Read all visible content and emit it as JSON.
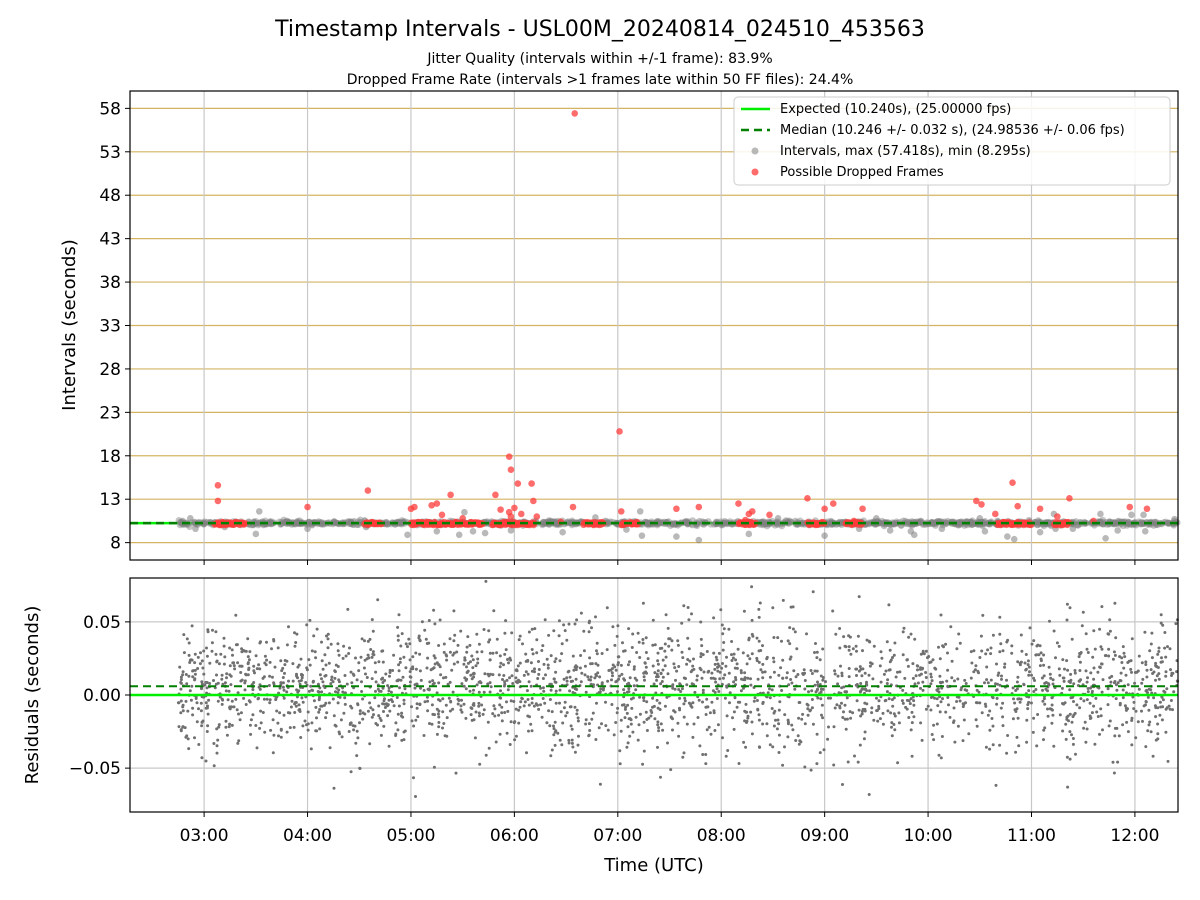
{
  "chart_data": [
    {
      "type": "scatter",
      "title": "Timestamp Intervals - USL00M_20240814_024510_453563",
      "subtitle_lines": [
        "Jitter Quality (intervals within +/-1 frame): 83.9%",
        "Dropped Frame Rate (intervals >1 frames late within 50 FF files): 24.4%"
      ],
      "xlabel": "",
      "ylabel": "Intervals (seconds)",
      "xlim": [
        "02:17",
        "12:25"
      ],
      "ylim": [
        6,
        60
      ],
      "yticks": [
        8,
        13,
        18,
        23,
        28,
        33,
        38,
        43,
        48,
        53,
        58
      ],
      "grid": true,
      "legend_position": "top-right",
      "legend": [
        "Expected (10.240s), (25.00000 fps)",
        "Median (10.246 +/- 0.032 s), (24.98536 +/- 0.06 fps)",
        "Intervals, max (57.418s), min (8.295s)",
        "Possible Dropped Frames"
      ],
      "expected_interval": 10.24,
      "median_interval": 10.246,
      "x_range_of_points": [
        "02:45",
        "12:25"
      ],
      "series": [
        {
          "name": "Intervals, max (57.418s), min (8.295s)",
          "color": "#808080",
          "points": [
            [
              "02:52",
              10.8
            ],
            [
              "02:55",
              9.6
            ],
            [
              "03:12",
              9.8
            ],
            [
              "03:30",
              9.0
            ],
            [
              "03:32",
              11.6
            ],
            [
              "04:00",
              9.6
            ],
            [
              "04:34",
              9.8
            ],
            [
              "04:58",
              8.9
            ],
            [
              "05:15",
              9.3
            ],
            [
              "05:28",
              8.9
            ],
            [
              "05:31",
              11.5
            ],
            [
              "05:36",
              9.3
            ],
            [
              "05:43",
              9.1
            ],
            [
              "05:58",
              9.4
            ],
            [
              "06:28",
              9.2
            ],
            [
              "06:47",
              10.9
            ],
            [
              "07:05",
              9.5
            ],
            [
              "07:13",
              11.6
            ],
            [
              "07:14",
              8.8
            ],
            [
              "07:34",
              8.7
            ],
            [
              "07:47",
              8.3
            ],
            [
              "08:16",
              9.0
            ],
            [
              "08:33",
              10.8
            ],
            [
              "09:00",
              8.8
            ],
            [
              "09:20",
              9.6
            ],
            [
              "09:30",
              10.8
            ],
            [
              "09:38",
              9.4
            ],
            [
              "09:50",
              9.3
            ],
            [
              "09:52",
              8.9
            ],
            [
              "10:08",
              9.6
            ],
            [
              "10:30",
              10.8
            ],
            [
              "10:33",
              9.3
            ],
            [
              "10:46",
              8.7
            ],
            [
              "10:50",
              8.4
            ],
            [
              "11:05",
              9.2
            ],
            [
              "11:13",
              11.3
            ],
            [
              "11:14",
              9.6
            ],
            [
              "11:24",
              9.6
            ],
            [
              "11:40",
              11.3
            ],
            [
              "11:43",
              8.5
            ],
            [
              "11:50",
              9.4
            ],
            [
              "11:58",
              11.2
            ],
            [
              "12:05",
              11.2
            ],
            [
              "12:06",
              9.3
            ],
            [
              "12:23",
              10.7
            ]
          ]
        },
        {
          "name": "Possible Dropped Frames",
          "color": "#ff3b3b",
          "points": [
            [
              "03:08",
              14.6
            ],
            [
              "03:08",
              12.8
            ],
            [
              "04:00",
              12.1
            ],
            [
              "04:35",
              14.0
            ],
            [
              "05:00",
              11.9
            ],
            [
              "05:02",
              12.1
            ],
            [
              "05:12",
              12.3
            ],
            [
              "05:15",
              12.5
            ],
            [
              "05:18",
              11.2
            ],
            [
              "05:23",
              13.5
            ],
            [
              "05:30",
              10.8
            ],
            [
              "05:49",
              13.5
            ],
            [
              "05:52",
              11.8
            ],
            [
              "05:57",
              11.5
            ],
            [
              "05:58",
              11.0
            ],
            [
              "06:00",
              12.0
            ],
            [
              "05:57",
              17.9
            ],
            [
              "05:58",
              16.4
            ],
            [
              "06:02",
              14.8
            ],
            [
              "06:04",
              11.3
            ],
            [
              "06:10",
              14.8
            ],
            [
              "06:11",
              12.8
            ],
            [
              "06:13",
              11.0
            ],
            [
              "06:27",
              10.4
            ],
            [
              "06:34",
              12.1
            ],
            [
              "06:35",
              57.418
            ],
            [
              "07:01",
              20.8
            ],
            [
              "07:02",
              11.6
            ],
            [
              "07:34",
              11.9
            ],
            [
              "07:47",
              12.1
            ],
            [
              "08:10",
              12.5
            ],
            [
              "08:14",
              10.6
            ],
            [
              "08:16",
              11.3
            ],
            [
              "08:18",
              11.6
            ],
            [
              "08:28",
              11.2
            ],
            [
              "08:50",
              13.1
            ],
            [
              "09:00",
              11.9
            ],
            [
              "09:05",
              12.5
            ],
            [
              "09:17",
              10.5
            ],
            [
              "09:22",
              11.9
            ],
            [
              "10:28",
              12.8
            ],
            [
              "10:31",
              12.4
            ],
            [
              "10:39",
              11.3
            ],
            [
              "10:49",
              14.9
            ],
            [
              "10:52",
              12.2
            ],
            [
              "11:05",
              11.9
            ],
            [
              "11:15",
              11.0
            ],
            [
              "11:22",
              13.1
            ],
            [
              "11:36",
              10.5
            ],
            [
              "11:57",
              12.1
            ],
            [
              "12:07",
              11.9
            ]
          ],
          "dense_segments_at_expected": [
            [
              "03:06",
              "03:24"
            ],
            [
              "04:33",
              "04:43"
            ],
            [
              "05:00",
              "05:42"
            ],
            [
              "05:47",
              "06:12"
            ],
            [
              "06:40",
              "06:52"
            ],
            [
              "07:02",
              "07:12"
            ],
            [
              "08:10",
              "08:20"
            ],
            [
              "08:50",
              "09:00"
            ],
            [
              "09:12",
              "09:22"
            ],
            [
              "10:40",
              "11:00"
            ],
            [
              "11:13",
              "11:22"
            ]
          ]
        }
      ]
    },
    {
      "type": "scatter",
      "title": "",
      "xlabel": "Time (UTC)",
      "ylabel": "Residuals (seconds)",
      "xlim": [
        "02:17",
        "12:25"
      ],
      "ylim": [
        -0.08,
        0.08
      ],
      "yticks": [
        -0.05,
        0.0,
        0.05
      ],
      "ytick_labels": [
        "−0.05",
        "0.00",
        "0.05"
      ],
      "xticks": [
        "03:00",
        "04:00",
        "05:00",
        "06:00",
        "07:00",
        "08:00",
        "09:00",
        "10:00",
        "11:00",
        "12:00"
      ],
      "grid": true,
      "expected_residual": 0.0,
      "median_residual": 0.006,
      "series": [
        {
          "name": "",
          "color": "#707070",
          "point_count": 2600,
          "x_range": [
            "02:45",
            "12:25"
          ],
          "y_spread_std": 0.022,
          "y_center": 0.005
        }
      ]
    }
  ],
  "colors": {
    "expected_line": "#00ee00",
    "median_line": "#008000",
    "intervals_points": "#808080",
    "dropped_points": "#ff3b3b",
    "main_grid": "#d4b463",
    "residual_grid": "#c8c8c8",
    "residual_points": "#707070"
  }
}
